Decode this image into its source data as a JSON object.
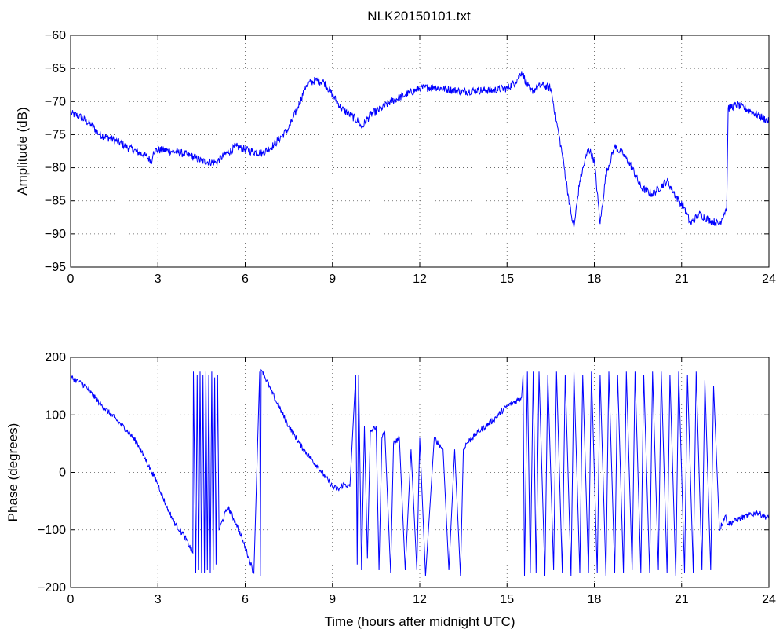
{
  "chart_data": [
    {
      "type": "line",
      "title": "NLK20150101.txt",
      "xlabel": "",
      "ylabel": "Amplitude (dB)",
      "xlim": [
        0,
        24
      ],
      "ylim": [
        -95,
        -60
      ],
      "xticks": [
        "0",
        "3",
        "6",
        "9",
        "12",
        "15",
        "18",
        "21",
        "24"
      ],
      "yticks": [
        "−60",
        "−65",
        "−70",
        "−75",
        "−80",
        "−85",
        "−90",
        "−95"
      ],
      "grid": true,
      "line_color": "#0000ff",
      "noise": 0.6,
      "x": [
        0,
        0.3,
        0.7,
        1.0,
        1.5,
        2.0,
        2.5,
        2.8,
        2.85,
        3.0,
        3.5,
        4.0,
        4.3,
        4.5,
        5.0,
        5.3,
        5.7,
        6.2,
        6.6,
        7.0,
        7.5,
        7.8,
        8.1,
        8.4,
        8.7,
        9.0,
        9.3,
        9.6,
        9.9,
        10.0,
        10.3,
        10.7,
        11.0,
        11.5,
        12.0,
        12.5,
        13.0,
        13.5,
        14.0,
        14.5,
        15.0,
        15.3,
        15.5,
        15.8,
        16.0,
        16.2,
        16.5,
        16.7,
        16.9,
        17.1,
        17.2,
        17.3,
        17.5,
        17.8,
        18.0,
        18.2,
        18.4,
        18.7,
        19.0,
        19.3,
        19.6,
        20.0,
        20.5,
        20.9,
        21.1,
        21.3,
        21.6,
        22.0,
        22.3,
        22.55,
        22.6,
        22.9,
        23.4,
        24.0
      ],
      "y": [
        -71.8,
        -72.2,
        -73.5,
        -75.0,
        -75.8,
        -77.0,
        -78.0,
        -79.0,
        -77.5,
        -77.3,
        -77.5,
        -78.0,
        -78.5,
        -79.0,
        -79.2,
        -78.0,
        -76.8,
        -77.5,
        -77.8,
        -76.5,
        -74.0,
        -71.0,
        -67.5,
        -66.8,
        -67.0,
        -69.0,
        -71.0,
        -72.0,
        -73.0,
        -74.0,
        -72.0,
        -71.0,
        -70.0,
        -69.0,
        -68.0,
        -67.8,
        -68.2,
        -68.5,
        -68.3,
        -68.3,
        -68.0,
        -67.0,
        -65.5,
        -68.5,
        -68.0,
        -67.5,
        -68.0,
        -73.0,
        -78.0,
        -84.0,
        -87.0,
        -89.0,
        -82.0,
        -77.0,
        -79.0,
        -88.5,
        -81.0,
        -76.8,
        -78.0,
        -80.0,
        -83.0,
        -84.0,
        -82.0,
        -85.0,
        -86.0,
        -88.5,
        -87.0,
        -88.0,
        -88.5,
        -86.0,
        -71.0,
        -70.5,
        -71.5,
        -73.0
      ]
    },
    {
      "type": "line",
      "title": "",
      "xlabel": "Time (hours after midnight UTC)",
      "ylabel": "Phase (degrees)",
      "xlim": [
        0,
        24
      ],
      "ylim": [
        -200,
        200
      ],
      "xticks": [
        "0",
        "3",
        "6",
        "9",
        "12",
        "15",
        "18",
        "21",
        "24"
      ],
      "yticks": [
        "200",
        "100",
        "0",
        "−100",
        "−200"
      ],
      "grid": true,
      "line_color": "#0000ff",
      "noise": 5,
      "x": [
        0,
        0.2,
        0.5,
        1.0,
        1.5,
        2.0,
        2.3,
        2.5,
        2.8,
        3.0,
        3.3,
        3.6,
        3.9,
        4.2,
        4.22,
        4.3,
        4.35,
        4.4,
        4.45,
        4.5,
        4.55,
        4.6,
        4.65,
        4.7,
        4.75,
        4.8,
        4.85,
        4.9,
        4.95,
        5.0,
        5.05,
        5.1,
        5.4,
        5.7,
        6.0,
        6.3,
        6.5,
        6.52,
        6.55,
        6.6,
        7.0,
        7.5,
        8.0,
        8.5,
        9.0,
        9.2,
        9.4,
        9.6,
        9.8,
        9.85,
        9.9,
        10.0,
        10.1,
        10.2,
        10.3,
        10.5,
        10.6,
        10.7,
        10.8,
        11.0,
        11.1,
        11.3,
        11.5,
        11.7,
        11.9,
        12.0,
        12.2,
        12.5,
        12.8,
        13.0,
        13.2,
        13.4,
        13.5,
        13.6,
        14.0,
        14.5,
        15.0,
        15.5,
        15.55,
        15.6,
        15.7,
        15.8,
        15.9,
        16.0,
        16.1,
        16.3,
        16.4,
        16.6,
        16.7,
        16.9,
        17.0,
        17.2,
        17.3,
        17.5,
        17.6,
        17.8,
        17.9,
        18.1,
        18.2,
        18.4,
        18.5,
        18.7,
        18.8,
        19.0,
        19.1,
        19.3,
        19.4,
        19.6,
        19.7,
        19.9,
        20.0,
        20.2,
        20.3,
        20.5,
        20.6,
        20.8,
        20.9,
        21.1,
        21.2,
        21.4,
        21.5,
        21.7,
        21.8,
        22.0,
        22.1,
        22.3,
        22.5,
        22.6,
        23.0,
        23.3,
        23.6,
        24.0
      ],
      "y": [
        165,
        160,
        150,
        120,
        95,
        70,
        50,
        30,
        0,
        -20,
        -60,
        -90,
        -110,
        -140,
        175,
        -175,
        170,
        -170,
        175,
        -175,
        170,
        -175,
        175,
        -170,
        170,
        -175,
        175,
        -170,
        165,
        -160,
        170,
        -100,
        -60,
        -90,
        -130,
        -175,
        175,
        -180,
        178,
        175,
        130,
        80,
        40,
        10,
        -25,
        -30,
        -20,
        -25,
        170,
        -160,
        170,
        -170,
        80,
        -150,
        70,
        80,
        -170,
        60,
        70,
        -175,
        50,
        60,
        -170,
        40,
        -170,
        60,
        -180,
        60,
        40,
        -170,
        40,
        -180,
        40,
        50,
        70,
        90,
        115,
        130,
        170,
        -180,
        175,
        -175,
        175,
        -175,
        175,
        -180,
        170,
        -170,
        175,
        -175,
        170,
        -180,
        175,
        -175,
        170,
        -175,
        175,
        -175,
        170,
        -180,
        175,
        -175,
        170,
        -175,
        175,
        -170,
        175,
        -175,
        170,
        -175,
        175,
        -170,
        175,
        -175,
        170,
        -180,
        175,
        -175,
        170,
        -175,
        175,
        -170,
        160,
        -170,
        150,
        -100,
        -75,
        -90,
        -80,
        -75,
        -70,
        -80
      ]
    }
  ]
}
